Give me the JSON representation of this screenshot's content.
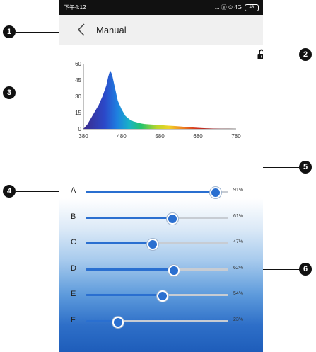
{
  "status_bar": {
    "time": "下午4:12",
    "right_text": "... ⓖ ⏲ 4G",
    "battery": "48"
  },
  "header": {
    "title": "Manual"
  },
  "markers": [
    "1",
    "2",
    "3",
    "4",
    "5",
    "6"
  ],
  "chart_data": {
    "type": "area",
    "x_ticks": [
      "380",
      "480",
      "580",
      "680",
      "780"
    ],
    "y_ticks": [
      "0",
      "15",
      "30",
      "45",
      "60"
    ],
    "xlim": [
      380,
      780
    ],
    "ylim": [
      0,
      60
    ],
    "x": [
      380,
      390,
      400,
      410,
      420,
      430,
      440,
      445,
      450,
      455,
      460,
      465,
      470,
      480,
      490,
      500,
      510,
      520,
      530,
      540,
      560,
      580,
      600,
      620,
      640,
      660,
      680,
      700,
      720,
      740,
      760,
      780
    ],
    "y": [
      0,
      4,
      10,
      16,
      22,
      30,
      40,
      48,
      54,
      50,
      42,
      34,
      26,
      18,
      12,
      9,
      7,
      6,
      5,
      4.5,
      4,
      3.5,
      3,
      2.6,
      2,
      1.5,
      1,
      0.6,
      0.3,
      0.2,
      0.1,
      0
    ]
  },
  "sliders": [
    {
      "label": "A",
      "value": 91,
      "text": "91%"
    },
    {
      "label": "B",
      "value": 61,
      "text": "61%"
    },
    {
      "label": "C",
      "value": 47,
      "text": "47%"
    },
    {
      "label": "D",
      "value": 62,
      "text": "62%"
    },
    {
      "label": "E",
      "value": 54,
      "text": "54%"
    },
    {
      "label": "F",
      "value": 23,
      "text": "23%"
    }
  ],
  "colors": {
    "accent": "#2a6fd0",
    "track": "#c7ccd3",
    "header_bg": "#f0f0f0",
    "status_bg": "#111111"
  }
}
